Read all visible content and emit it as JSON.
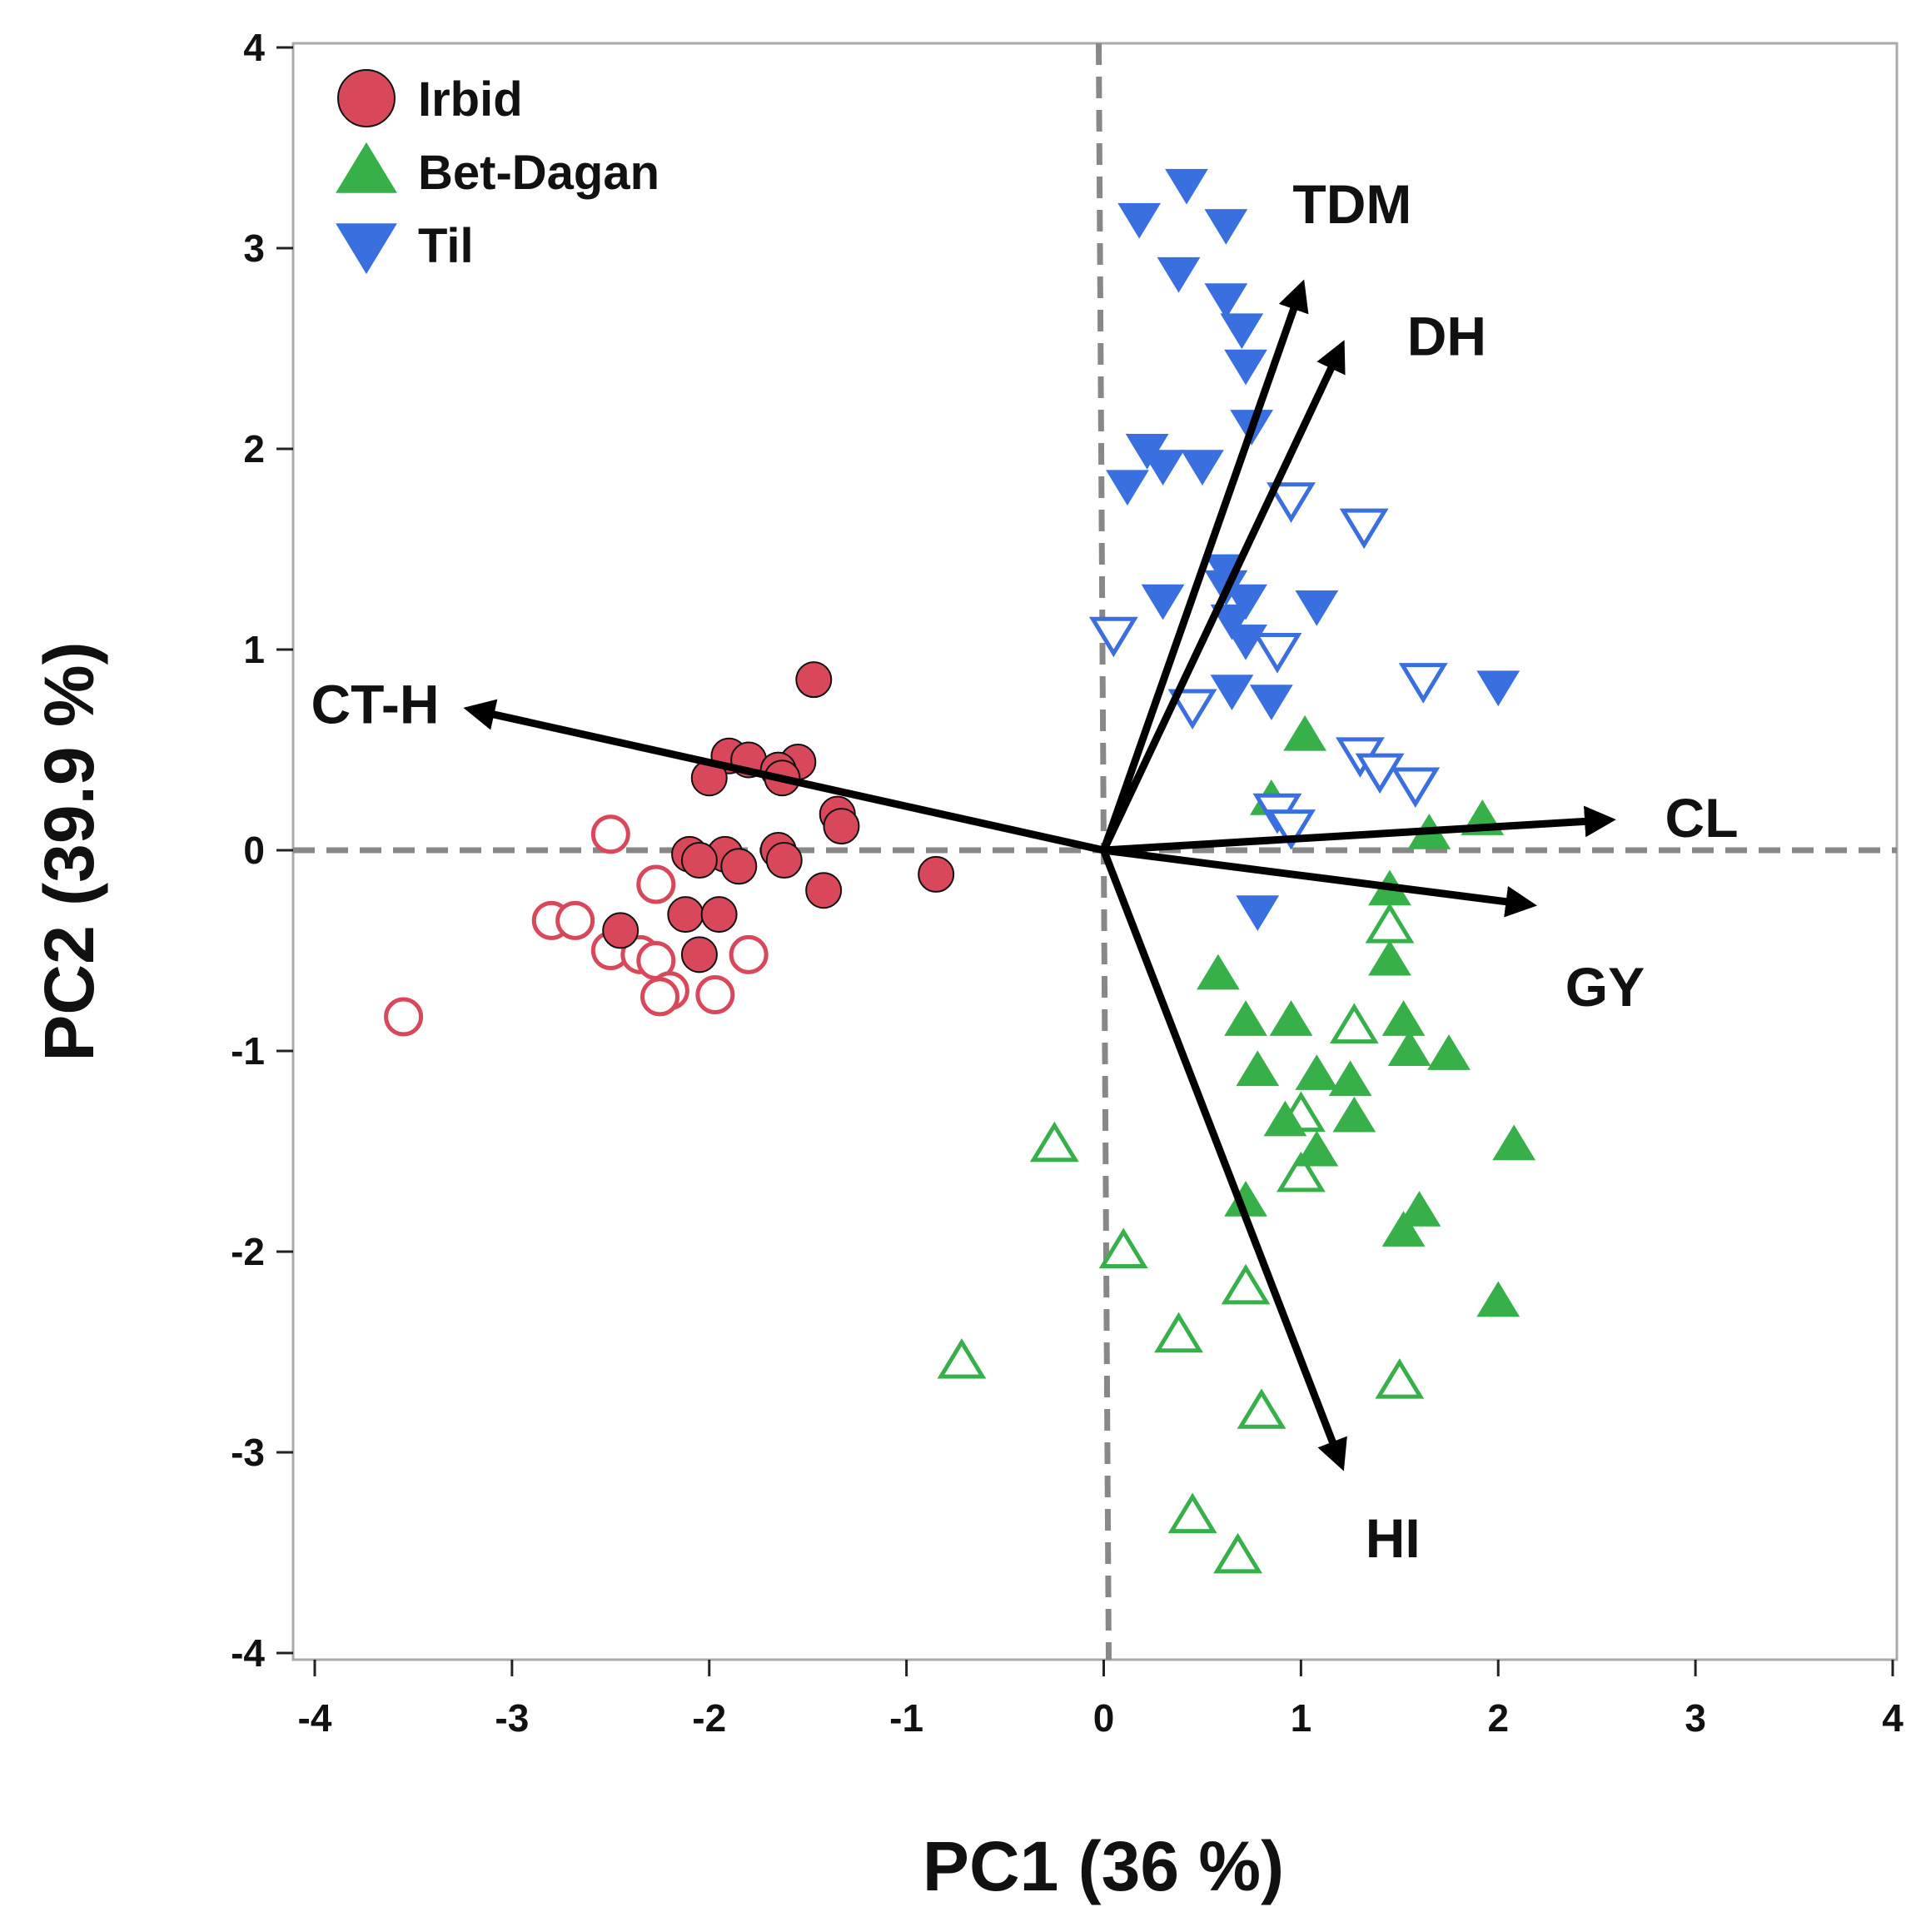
{
  "chart_data": {
    "type": "scatter",
    "xlabel": "PC1 (36 %)",
    "ylabel": "PC2 (39.9 %)",
    "xlim": [
      -4,
      4
    ],
    "ylim": [
      -4,
      4
    ],
    "xticks": [
      -4,
      -3,
      -2,
      -1,
      0,
      1,
      2,
      3,
      4
    ],
    "yticks": [
      -4,
      -3,
      -2,
      -1,
      0,
      1,
      2,
      3,
      4
    ],
    "reference_lines": {
      "x": 0,
      "y": 0,
      "style": "dashed"
    },
    "colors": {
      "Irbid": "#d9475a",
      "Bet-Dagan": "#38b04a",
      "Til": "#3a6fe0",
      "vector": "#000000",
      "reference": "#888888",
      "frame": "#aaaaaa"
    },
    "legend": {
      "position": "top-left",
      "entries": [
        {
          "label": "Irbid",
          "marker": "circle"
        },
        {
          "label": "Bet-Dagan",
          "marker": "triangle-up"
        },
        {
          "label": "Til",
          "marker": "triangle-down"
        }
      ]
    },
    "vectors": [
      {
        "label": "CT-H",
        "x": -3.2,
        "y": 0.7
      },
      {
        "label": "TDM",
        "x": 1.0,
        "y": 2.8
      },
      {
        "label": "DH",
        "x": 1.2,
        "y": 2.5
      },
      {
        "label": "CL",
        "x": 2.55,
        "y": 0.15
      },
      {
        "label": "GY",
        "x": 2.15,
        "y": -0.27
      },
      {
        "label": "HI",
        "x": 1.2,
        "y": -3.05
      }
    ],
    "series": [
      {
        "name": "Irbid",
        "marker": "circle",
        "fill": "filled",
        "points": [
          [
            -1.47,
            0.85
          ],
          [
            -1.9,
            0.47
          ],
          [
            -1.8,
            0.45
          ],
          [
            -1.55,
            0.44
          ],
          [
            -1.65,
            0.4
          ],
          [
            -2.0,
            0.36
          ],
          [
            -1.63,
            0.36
          ],
          [
            -1.35,
            0.18
          ],
          [
            -1.33,
            0.12
          ],
          [
            -2.1,
            -0.02
          ],
          [
            -1.92,
            -0.02
          ],
          [
            -1.65,
            0.0
          ],
          [
            -2.05,
            -0.05
          ],
          [
            -1.85,
            -0.08
          ],
          [
            -1.62,
            -0.05
          ],
          [
            -1.42,
            -0.2
          ],
          [
            -0.85,
            -0.12
          ],
          [
            -2.12,
            -0.32
          ],
          [
            -1.95,
            -0.32
          ],
          [
            -2.45,
            -0.4
          ],
          [
            -2.05,
            -0.52
          ]
        ]
      },
      {
        "name": "Irbid",
        "marker": "circle",
        "fill": "open",
        "points": [
          [
            -2.5,
            0.08
          ],
          [
            -2.27,
            -0.17
          ],
          [
            -2.8,
            -0.35
          ],
          [
            -2.68,
            -0.35
          ],
          [
            -2.5,
            -0.5
          ],
          [
            -2.35,
            -0.52
          ],
          [
            -2.27,
            -0.55
          ],
          [
            -1.8,
            -0.52
          ],
          [
            -2.2,
            -0.7
          ],
          [
            -1.97,
            -0.72
          ],
          [
            -2.25,
            -0.73
          ],
          [
            -3.55,
            -0.83
          ]
        ]
      },
      {
        "name": "Bet-Dagan",
        "marker": "triangle-up",
        "fill": "filled",
        "points": [
          [
            1.02,
            0.57
          ],
          [
            0.85,
            0.25
          ],
          [
            1.65,
            0.08
          ],
          [
            1.92,
            0.15
          ],
          [
            1.45,
            -0.2
          ],
          [
            1.45,
            -0.55
          ],
          [
            0.58,
            -0.62
          ],
          [
            0.72,
            -0.85
          ],
          [
            0.95,
            -0.85
          ],
          [
            1.52,
            -0.85
          ],
          [
            1.55,
            -1.0
          ],
          [
            1.75,
            -1.02
          ],
          [
            0.78,
            -1.1
          ],
          [
            1.08,
            -1.12
          ],
          [
            1.25,
            -1.15
          ],
          [
            0.92,
            -1.35
          ],
          [
            1.27,
            -1.33
          ],
          [
            1.08,
            -1.5
          ],
          [
            2.08,
            -1.47
          ],
          [
            0.72,
            -1.75
          ],
          [
            1.6,
            -1.8
          ],
          [
            1.52,
            -1.9
          ],
          [
            2.0,
            -2.25
          ]
        ]
      },
      {
        "name": "Bet-Dagan",
        "marker": "triangle-up",
        "fill": "open",
        "points": [
          [
            1.45,
            -0.38
          ],
          [
            1.27,
            -0.88
          ],
          [
            1.0,
            -1.32
          ],
          [
            1.0,
            -1.62
          ],
          [
            -0.25,
            -1.47
          ],
          [
            0.1,
            -2.0
          ],
          [
            0.72,
            -2.18
          ],
          [
            0.38,
            -2.42
          ],
          [
            -0.72,
            -2.55
          ],
          [
            1.5,
            -2.65
          ],
          [
            0.8,
            -2.8
          ],
          [
            0.45,
            -3.32
          ],
          [
            0.68,
            -3.52
          ]
        ]
      },
      {
        "name": "Til",
        "marker": "triangle-down",
        "fill": "filled",
        "points": [
          [
            0.42,
            3.32
          ],
          [
            0.18,
            3.15
          ],
          [
            0.62,
            3.12
          ],
          [
            0.38,
            2.88
          ],
          [
            0.62,
            2.75
          ],
          [
            0.7,
            2.6
          ],
          [
            0.72,
            2.42
          ],
          [
            0.75,
            2.12
          ],
          [
            0.22,
            2.0
          ],
          [
            0.3,
            1.92
          ],
          [
            0.5,
            1.92
          ],
          [
            0.12,
            1.82
          ],
          [
            0.62,
            1.4
          ],
          [
            0.62,
            1.32
          ],
          [
            0.72,
            1.25
          ],
          [
            0.3,
            1.25
          ],
          [
            1.08,
            1.22
          ],
          [
            0.65,
            1.15
          ],
          [
            0.72,
            1.05
          ],
          [
            0.65,
            0.8
          ],
          [
            0.85,
            0.75
          ],
          [
            2.0,
            0.82
          ],
          [
            0.78,
            -0.3
          ]
        ]
      },
      {
        "name": "Til",
        "marker": "triangle-down",
        "fill": "open",
        "points": [
          [
            0.95,
            1.75
          ],
          [
            1.32,
            1.62
          ],
          [
            0.05,
            1.08
          ],
          [
            0.88,
            1.0
          ],
          [
            1.62,
            0.85
          ],
          [
            0.45,
            0.72
          ],
          [
            1.3,
            0.48
          ],
          [
            1.4,
            0.4
          ],
          [
            1.58,
            0.33
          ],
          [
            0.88,
            0.2
          ],
          [
            0.95,
            0.12
          ]
        ]
      }
    ]
  }
}
